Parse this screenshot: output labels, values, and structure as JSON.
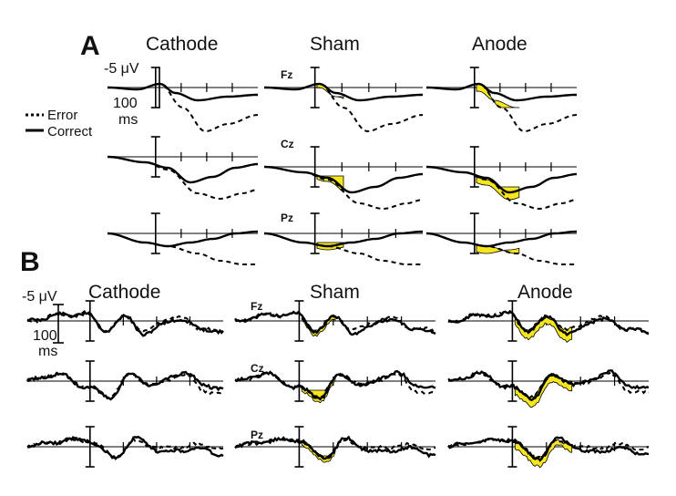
{
  "panels": [
    {
      "label": "A",
      "conditions": [
        "Cathode",
        "Sham",
        "Anode"
      ],
      "electrodes": [
        "Fz",
        "Cz",
        "Pz"
      ],
      "scale_amplitude": "-5 μV",
      "scale_time_value": "100",
      "scale_time_unit": "ms"
    },
    {
      "label": "B",
      "conditions": [
        "Cathode",
        "Sham",
        "Anode"
      ],
      "electrodes": [
        "Fz",
        "Cz",
        "Pz"
      ],
      "scale_amplitude": "-5 μV",
      "scale_time_value": "100",
      "scale_time_unit": "ms"
    }
  ],
  "legend": {
    "items": [
      {
        "label": "Error",
        "style": "dashed"
      },
      {
        "label": "Correct",
        "style": "solid"
      }
    ]
  },
  "colors": {
    "trace": "#000000",
    "highlight": "#f5e61e",
    "axis": "#808080",
    "text": "#111111"
  },
  "chart_data": {
    "type": "line",
    "description_note": "",
    "x_unit": "ms",
    "y_unit": "μV"
  }
}
